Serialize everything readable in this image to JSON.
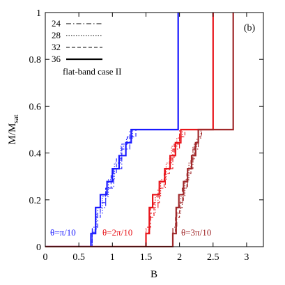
{
  "chart_data": {
    "type": "line",
    "title": "",
    "panel_label": "(b)",
    "xlabel": "B",
    "ylabel_main": "M/M",
    "ylabel_sub": "sat",
    "xlim": [
      0,
      3.25
    ],
    "ylim": [
      0,
      1
    ],
    "xticks": [
      0,
      0.5,
      1,
      1.5,
      2,
      2.5,
      3
    ],
    "xtick_labels": [
      "0",
      "0.5",
      "1",
      "1.5",
      "2",
      "2.5",
      "3"
    ],
    "yticks": [
      0,
      0.2,
      0.4,
      0.6,
      0.8,
      1
    ],
    "ytick_labels": [
      "0",
      "0.2",
      "0.4",
      "0.6",
      "0.8",
      "1"
    ],
    "grid": false,
    "legend_position": "top-left",
    "legend_title": "flat-band case II",
    "legend": [
      {
        "label": "24",
        "dash": "dashdot"
      },
      {
        "label": "28",
        "dash": "dotted"
      },
      {
        "label": "32",
        "dash": "dashed"
      },
      {
        "label": "36",
        "dash": "solid-thick"
      }
    ],
    "groups": [
      {
        "label": "θ=π/10",
        "color": "#1a1aff",
        "curves": [
          {
            "size": "24",
            "x": [
              0,
              0.7,
              0.7,
              0.78,
              0.78,
              0.9,
              0.9,
              1.02,
              1.02,
              1.14,
              1.14,
              1.26,
              1.26,
              1.44,
              1.44,
              1.98,
              1.98
            ],
            "y": [
              0,
              0,
              0.083,
              0.083,
              0.167,
              0.167,
              0.25,
              0.25,
              0.333,
              0.333,
              0.417,
              0.417,
              0.5,
              0.5,
              0.5,
              0.5,
              1
            ]
          },
          {
            "size": "28",
            "x": [
              0,
              0.7,
              0.7,
              0.76,
              0.76,
              0.85,
              0.85,
              0.94,
              0.94,
              1.03,
              1.03,
              1.12,
              1.12,
              1.21,
              1.21,
              1.3,
              1.3,
              1.98,
              1.98
            ],
            "y": [
              0,
              0,
              0.071,
              0.071,
              0.143,
              0.143,
              0.214,
              0.214,
              0.286,
              0.286,
              0.357,
              0.357,
              0.429,
              0.429,
              0.464,
              0.464,
              0.5,
              0.5,
              1
            ]
          },
          {
            "size": "32",
            "x": [
              0,
              0.7,
              0.7,
              0.75,
              0.75,
              0.82,
              0.82,
              0.9,
              0.9,
              0.98,
              0.98,
              1.06,
              1.06,
              1.14,
              1.14,
              1.22,
              1.22,
              1.35,
              1.35,
              1.98,
              1.98
            ],
            "y": [
              0,
              0,
              0.062,
              0.062,
              0.125,
              0.125,
              0.188,
              0.188,
              0.25,
              0.25,
              0.312,
              0.312,
              0.375,
              0.375,
              0.438,
              0.438,
              0.469,
              0.469,
              0.5,
              0.5,
              1
            ]
          },
          {
            "size": "36",
            "x": [
              0,
              0.68,
              0.68,
              0.75,
              0.75,
              0.82,
              0.82,
              0.92,
              0.92,
              1.0,
              1.0,
              1.1,
              1.1,
              1.2,
              1.2,
              1.28,
              1.28,
              1.35,
              1.35,
              1.98,
              1.98
            ],
            "y": [
              0,
              0,
              0.056,
              0.056,
              0.167,
              0.167,
              0.222,
              0.222,
              0.278,
              0.278,
              0.333,
              0.333,
              0.389,
              0.389,
              0.444,
              0.444,
              0.5,
              0.5,
              0.5,
              0.5,
              1
            ]
          }
        ]
      },
      {
        "label": "θ=2π/10",
        "color": "#e8151b",
        "curves": [
          {
            "size": "24",
            "x": [
              0,
              1.5,
              1.5,
              1.57,
              1.57,
              1.68,
              1.68,
              1.79,
              1.79,
              1.9,
              1.9,
              2.0,
              2.0,
              2.1,
              2.1,
              2.5,
              2.5
            ],
            "y": [
              0,
              0,
              0.083,
              0.083,
              0.167,
              0.167,
              0.25,
              0.25,
              0.333,
              0.333,
              0.417,
              0.417,
              0.5,
              0.5,
              0.5,
              0.5,
              1
            ]
          },
          {
            "size": "28",
            "x": [
              0,
              1.5,
              1.5,
              1.56,
              1.56,
              1.64,
              1.64,
              1.72,
              1.72,
              1.8,
              1.8,
              1.88,
              1.88,
              1.96,
              1.96,
              2.04,
              2.04,
              2.5,
              2.5
            ],
            "y": [
              0,
              0,
              0.071,
              0.071,
              0.143,
              0.143,
              0.214,
              0.214,
              0.286,
              0.286,
              0.357,
              0.357,
              0.429,
              0.429,
              0.464,
              0.464,
              0.5,
              0.5,
              1
            ]
          },
          {
            "size": "32",
            "x": [
              0,
              1.5,
              1.5,
              1.55,
              1.55,
              1.62,
              1.62,
              1.7,
              1.7,
              1.77,
              1.77,
              1.85,
              1.85,
              1.92,
              1.92,
              2.0,
              2.0,
              2.08,
              2.08,
              2.5,
              2.5
            ],
            "y": [
              0,
              0,
              0.062,
              0.062,
              0.125,
              0.125,
              0.188,
              0.188,
              0.25,
              0.25,
              0.312,
              0.312,
              0.375,
              0.375,
              0.438,
              0.438,
              0.469,
              0.469,
              0.5,
              0.5,
              1
            ]
          },
          {
            "size": "36",
            "x": [
              0,
              1.5,
              1.5,
              1.55,
              1.55,
              1.6,
              1.6,
              1.7,
              1.7,
              1.78,
              1.78,
              1.86,
              1.86,
              1.94,
              1.94,
              2.02,
              2.02,
              2.1,
              2.1,
              2.5,
              2.5
            ],
            "y": [
              0,
              0,
              0.056,
              0.056,
              0.167,
              0.167,
              0.222,
              0.222,
              0.278,
              0.278,
              0.333,
              0.333,
              0.389,
              0.389,
              0.444,
              0.444,
              0.5,
              0.5,
              0.5,
              0.5,
              1
            ]
          }
        ]
      },
      {
        "label": "θ=3π/10",
        "color": "#a0282a",
        "curves": [
          {
            "size": "24",
            "x": [
              0,
              1.9,
              1.9,
              1.96,
              1.96,
              2.04,
              2.04,
              2.12,
              2.12,
              2.2,
              2.2,
              2.28,
              2.28,
              2.36,
              2.36,
              2.8,
              2.8
            ],
            "y": [
              0,
              0,
              0.083,
              0.083,
              0.167,
              0.167,
              0.25,
              0.25,
              0.333,
              0.333,
              0.417,
              0.417,
              0.5,
              0.5,
              0.5,
              0.5,
              1
            ]
          },
          {
            "size": "28",
            "x": [
              0,
              1.9,
              1.9,
              1.95,
              1.95,
              2.02,
              2.02,
              2.08,
              2.08,
              2.14,
              2.14,
              2.2,
              2.2,
              2.26,
              2.26,
              2.32,
              2.32,
              2.8,
              2.8
            ],
            "y": [
              0,
              0,
              0.071,
              0.071,
              0.143,
              0.143,
              0.214,
              0.214,
              0.286,
              0.286,
              0.357,
              0.357,
              0.429,
              0.429,
              0.464,
              0.464,
              0.5,
              0.5,
              1
            ]
          },
          {
            "size": "32",
            "x": [
              0,
              1.9,
              1.9,
              1.94,
              1.94,
              2.0,
              2.0,
              2.06,
              2.06,
              2.11,
              2.11,
              2.17,
              2.17,
              2.22,
              2.22,
              2.28,
              2.28,
              2.33,
              2.33,
              2.8,
              2.8
            ],
            "y": [
              0,
              0,
              0.062,
              0.062,
              0.125,
              0.125,
              0.188,
              0.188,
              0.25,
              0.25,
              0.312,
              0.312,
              0.375,
              0.375,
              0.438,
              0.438,
              0.469,
              0.469,
              0.5,
              0.5,
              1
            ]
          },
          {
            "size": "36",
            "x": [
              0,
              1.9,
              1.9,
              1.95,
              1.95,
              1.99,
              1.99,
              2.06,
              2.06,
              2.12,
              2.12,
              2.18,
              2.18,
              2.24,
              2.24,
              2.28,
              2.28,
              2.3,
              2.3,
              2.8,
              2.8
            ],
            "y": [
              0,
              0,
              0.056,
              0.056,
              0.167,
              0.167,
              0.222,
              0.222,
              0.278,
              0.278,
              0.333,
              0.333,
              0.389,
              0.389,
              0.444,
              0.444,
              0.5,
              0.5,
              0.5,
              0.5,
              1
            ]
          }
        ]
      }
    ]
  }
}
